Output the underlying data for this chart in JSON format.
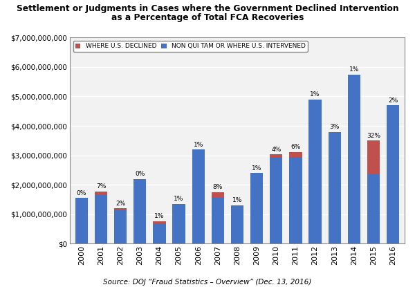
{
  "years": [
    "2000",
    "2001",
    "2002",
    "2003",
    "2004",
    "2005",
    "2006",
    "2007",
    "2008",
    "2009",
    "2010",
    "2011",
    "2012",
    "2013",
    "2014",
    "2015",
    "2016"
  ],
  "blue_values": [
    1550000000,
    1650000000,
    1150000000,
    2200000000,
    700000000,
    1350000000,
    3200000000,
    1550000000,
    1300000000,
    2400000000,
    2950000000,
    2950000000,
    4900000000,
    3800000000,
    5750000000,
    2350000000,
    4700000000
  ],
  "red_values": [
    0,
    130000000,
    50000000,
    0,
    70000000,
    0,
    0,
    200000000,
    0,
    0,
    80000000,
    170000000,
    0,
    0,
    0,
    1150000000,
    0
  ],
  "pct_labels": [
    "0%",
    "7%",
    "2%",
    "0%",
    "1%",
    "1%",
    "1%",
    "8%",
    "1%",
    "1%",
    "4%",
    "6%",
    "1%",
    "3%",
    "1%",
    "32%",
    "2%"
  ],
  "title_line1": "Settlement or Judgments in Cases where the Government Declined Intervention",
  "title_line2": "as a Percentage of Total FCA Recoveries",
  "legend_declined": "WHERE U.S. DECLINED",
  "legend_intervened": "NON QUI TAM OR WHERE U.S. INTERVENED",
  "blue_color": "#4472C4",
  "red_color": "#C0504D",
  "ylim_max": 7000000000,
  "source_text": "Source: DOJ “Fraud Statistics – Overview” (Dec. 13, 2016)",
  "background_color": "#FFFFFF",
  "plot_bg_color": "#F2F2F2",
  "gridline_color": "#FFFFFF",
  "yticks": [
    0,
    1000000000,
    2000000000,
    3000000000,
    4000000000,
    5000000000,
    6000000000,
    7000000000
  ],
  "ytick_labels": [
    "$0",
    "$1,000,000,000",
    "$2,000,000,000",
    "$3,000,000,000",
    "$4,000,000,000",
    "$5,000,000,000",
    "$6,000,000,000",
    "$7,000,000,000"
  ]
}
